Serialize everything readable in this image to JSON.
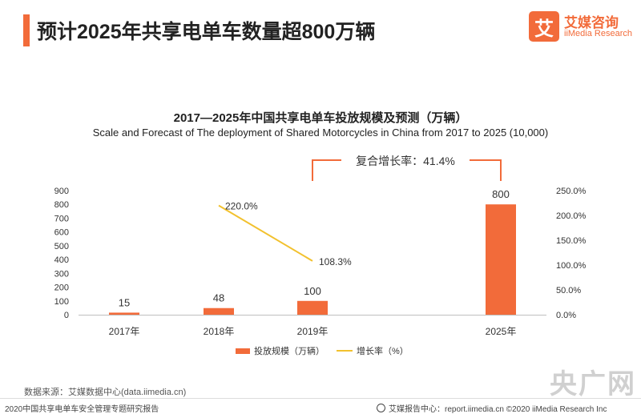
{
  "header": {
    "title": "预计2025年共享电单车数量超800万辆",
    "logo_mark": "艾",
    "logo_cn": "艾媒咨询",
    "logo_en": "iiMedia Research"
  },
  "chart_data": {
    "type": "bar",
    "title": "2017—2025年中国共享电单车投放规模及预测（万辆）",
    "subtitle": "Scale and Forecast of The deployment of Shared Motorcycles in China from 2017 to 2025 (10,000)",
    "categories": [
      "2017年",
      "2018年",
      "2019年",
      "2025年"
    ],
    "series": [
      {
        "name": "投放规模（万辆）",
        "type": "bar",
        "axis": "left",
        "values": [
          15,
          48,
          100,
          800
        ],
        "color": "#f26b3a"
      },
      {
        "name": "增长率（%）",
        "type": "line",
        "axis": "right",
        "values": [
          null,
          220.0,
          108.3,
          null
        ],
        "labels": [
          "",
          "220.0%",
          "108.3%",
          ""
        ],
        "color": "#f2c12e"
      }
    ],
    "bar_labels": [
      "15",
      "48",
      "100",
      "800"
    ],
    "y_left": {
      "ticks": [
        "0",
        "100",
        "200",
        "300",
        "400",
        "500",
        "600",
        "700",
        "800",
        "900"
      ],
      "min": 0,
      "max": 900
    },
    "y_right": {
      "ticks": [
        "0.0%",
        "50.0%",
        "100.0%",
        "150.0%",
        "200.0%",
        "250.0%"
      ],
      "min": 0,
      "max": 250
    },
    "annotation": "复合增长率：41.4%",
    "legend_position": "bottom",
    "grid": false
  },
  "footer": {
    "source": "数据来源：艾媒数据中心(data.iimedia.cn)",
    "left": "2020中国共享电单车安全管理专题研究报告",
    "right": "艾媒报告中心：report.iimedia.cn  ©2020  iiMedia Research Inc",
    "watermark": "央广网"
  }
}
